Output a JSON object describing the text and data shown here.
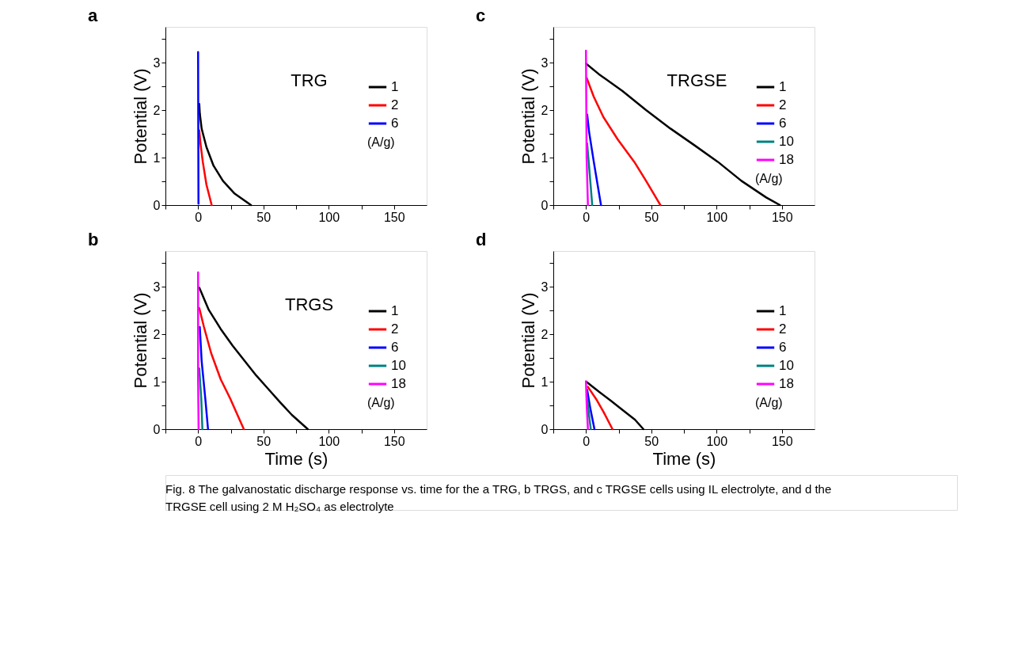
{
  "chart_data": [
    {
      "type": "line",
      "title": "a",
      "xlabel": null,
      "ylabel": "Potential (V)",
      "legend_title": "(A/g)",
      "legend": "right",
      "annotations": [
        "TRG"
      ],
      "xlim": [
        -25,
        175
      ],
      "xticks": [
        {
          "value": -25,
          "label": null
        },
        0,
        {
          "value": 25,
          "label": null
        },
        50,
        {
          "value": 75,
          "label": null
        },
        100,
        {
          "value": 125,
          "label": null
        },
        150
      ],
      "ylim": [
        0,
        3.75
      ],
      "yticks": [
        0,
        {
          "value": 0.5,
          "label": null
        },
        1,
        {
          "value": 1.5,
          "label": null
        },
        2,
        {
          "value": 2.5,
          "label": null
        },
        3,
        {
          "value": 3.5,
          "label": null
        }
      ],
      "series": [
        {
          "name": "1",
          "color": "#000000",
          "x": [
            0.5,
            0.9,
            1.3,
            2.7,
            6.4,
            11.8,
            19,
            28,
            40.5
          ],
          "values": [
            2.13,
            2.13,
            1.93,
            1.61,
            1.22,
            0.83,
            0.51,
            0.24,
            0
          ]
        },
        {
          "name": "2",
          "color": "#ff0000",
          "x": [
            0.9,
            1.8,
            3.6,
            6.4,
            10.4
          ],
          "values": [
            1.57,
            1.3,
            0.91,
            0.43,
            0
          ]
        },
        {
          "name": "6",
          "color": "#0000ff",
          "x": [
            0,
            0.3
          ],
          "values": [
            3.22,
            0.03
          ]
        }
      ]
    },
    {
      "type": "line",
      "title": "c",
      "ylabel": "Potential (V)",
      "legend_title": "(A/g)",
      "legend": "right",
      "annotations": [
        "TRGSE"
      ],
      "xlim": [
        -25,
        175
      ],
      "xticks": [
        {
          "value": -25,
          "label": null
        },
        0,
        {
          "value": 25,
          "label": null
        },
        50,
        {
          "value": 75,
          "label": null
        },
        100,
        {
          "value": 125,
          "label": null
        },
        150
      ],
      "ylim": [
        0,
        3.75
      ],
      "yticks": [
        0,
        {
          "value": 0.5,
          "label": null
        },
        1,
        {
          "value": 1.5,
          "label": null
        },
        2,
        {
          "value": 2.5,
          "label": null
        },
        3,
        {
          "value": 3.5,
          "label": null
        }
      ],
      "series": [
        {
          "name": "1",
          "color": "#000000",
          "x": [
            0,
            9.7,
            28,
            46,
            64.7,
            83,
            101,
            119,
            138,
            148.5
          ],
          "values": [
            2.98,
            2.76,
            2.4,
            2.0,
            1.61,
            1.26,
            0.91,
            0.51,
            0.16,
            0
          ]
        },
        {
          "name": "2",
          "color": "#ff0000",
          "x": [
            0.5,
            6,
            13.4,
            24.4,
            37,
            46,
            57
          ],
          "values": [
            2.68,
            2.28,
            1.85,
            1.38,
            0.91,
            0.51,
            0
          ]
        },
        {
          "name": "6",
          "color": "#0000ff",
          "x": [
            0.9,
            2.4,
            6,
            11.5
          ],
          "values": [
            1.91,
            1.54,
            0.91,
            0
          ]
        },
        {
          "name": "10",
          "color": "#008080",
          "x": [
            0.9,
            2.7,
            4.8
          ],
          "values": [
            1.3,
            0.71,
            0
          ]
        },
        {
          "name": "18",
          "color": "#ff00ff",
          "x": [
            0,
            0.5,
            1.5
          ],
          "values": [
            3.25,
            1.0,
            0
          ]
        }
      ]
    },
    {
      "type": "line",
      "title": "b",
      "xlabel": "Time (s)",
      "ylabel": "Potential (V)",
      "legend_title": "(A/g)",
      "legend": "right",
      "annotations": [
        "TRGS"
      ],
      "xlim": [
        -25,
        175
      ],
      "xticks": [
        {
          "value": -25,
          "label": null
        },
        0,
        {
          "value": 25,
          "label": null
        },
        50,
        {
          "value": 75,
          "label": null
        },
        100,
        {
          "value": 125,
          "label": null
        },
        150
      ],
      "ylim": [
        0,
        3.75
      ],
      "yticks": [
        0,
        {
          "value": 0.5,
          "label": null
        },
        1,
        {
          "value": 1.5,
          "label": null
        },
        2,
        {
          "value": 2.5,
          "label": null
        },
        3,
        {
          "value": 3.5,
          "label": null
        }
      ],
      "series": [
        {
          "name": "1",
          "color": "#000000",
          "x": [
            0.9,
            8.2,
            17.3,
            26.4,
            35.5,
            44.5,
            53.6,
            62.7,
            71.8,
            84
          ],
          "values": [
            2.98,
            2.51,
            2.11,
            1.76,
            1.44,
            1.13,
            0.85,
            0.57,
            0.3,
            0
          ]
        },
        {
          "name": "2",
          "color": "#ff0000",
          "x": [
            0.9,
            4.5,
            10,
            17.3,
            24.5,
            35
          ],
          "values": [
            2.55,
            2.15,
            1.6,
            1.05,
            0.65,
            0
          ]
        },
        {
          "name": "6",
          "color": "#0000ff",
          "x": [
            1.3,
            2.7,
            5.5,
            7.6
          ],
          "values": [
            2.15,
            1.44,
            0.65,
            0
          ]
        },
        {
          "name": "10",
          "color": "#008080",
          "x": [
            0.9,
            2.4,
            3.3
          ],
          "values": [
            1.28,
            0.65,
            0
          ]
        },
        {
          "name": "18",
          "color": "#ff00ff",
          "x": [
            0,
            0,
            0.4
          ],
          "values": [
            3.3,
            1.05,
            0
          ]
        }
      ]
    },
    {
      "type": "line",
      "title": "d",
      "xlabel": "Time (s)",
      "ylabel": "Potential (V)",
      "legend_title": "(A/g)",
      "legend": "right",
      "xlim": [
        -25,
        175
      ],
      "xticks": [
        {
          "value": -25,
          "label": null
        },
        0,
        {
          "value": 25,
          "label": null
        },
        50,
        {
          "value": 75,
          "label": null
        },
        100,
        {
          "value": 125,
          "label": null
        },
        150
      ],
      "ylim": [
        0,
        3.75
      ],
      "yticks": [
        0,
        {
          "value": 0.5,
          "label": null
        },
        1,
        {
          "value": 1.5,
          "label": null
        },
        2,
        {
          "value": 2.5,
          "label": null
        },
        3,
        {
          "value": 3.5,
          "label": null
        }
      ],
      "series": [
        {
          "name": "1",
          "color": "#000000",
          "x": [
            0.6,
            9.8,
            19,
            28.2,
            37.5,
            44
          ],
          "values": [
            0.99,
            0.79,
            0.6,
            0.4,
            0.2,
            0
          ]
        },
        {
          "name": "2",
          "color": "#ff0000",
          "x": [
            1.5,
            7.9,
            13.5,
            20.3
          ],
          "values": [
            0.89,
            0.63,
            0.36,
            0
          ]
        },
        {
          "name": "6",
          "color": "#0000ff",
          "x": [
            0.9,
            3.3,
            6.5
          ],
          "values": [
            0.83,
            0.44,
            0
          ]
        },
        {
          "name": "10",
          "color": "#008080",
          "x": [
            0.9,
            2.4,
            3.7
          ],
          "values": [
            0.67,
            0.28,
            0
          ]
        },
        {
          "name": "18",
          "color": "#ff00ff",
          "x": [
            0,
            0.6,
            1.5
          ],
          "values": [
            1.01,
            0.48,
            0
          ]
        }
      ]
    },
    {
      "type": "other",
      "annotations": [
        "Fig. 8 The galvanostatic discharge response vs. time for the a TRG, b TRGS, and c TRGSE cells using IL electrolyte, and d the TRGSE cell using 2 M H₂SO₄ as electrolyte"
      ]
    }
  ]
}
